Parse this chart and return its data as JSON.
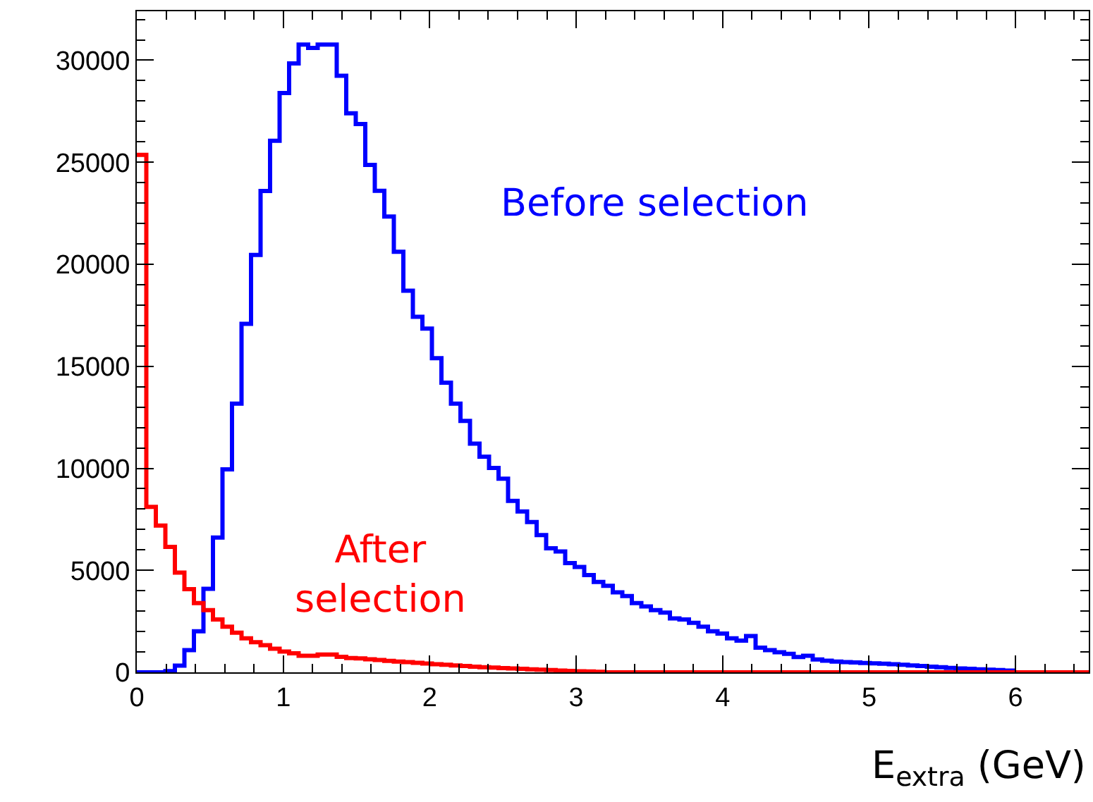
{
  "chart_data": {
    "type": "histogram",
    "xlabel": "E$_{extra}$ (GeV)",
    "bins": [
      0,
      0.065,
      0.13,
      0.195,
      0.26,
      0.325,
      0.39,
      0.455,
      0.52,
      0.585,
      0.65,
      0.715,
      0.78,
      0.845,
      0.91,
      0.975,
      1.04,
      1.105,
      1.17,
      1.235,
      1.3,
      1.365,
      1.43,
      1.495,
      1.56,
      1.625,
      1.69,
      1.755,
      1.82,
      1.885,
      1.95,
      2.015,
      2.08,
      2.145,
      2.21,
      2.275,
      2.34,
      2.405,
      2.47,
      2.535,
      2.6,
      2.665,
      2.73,
      2.795,
      2.86,
      2.925,
      2.99,
      3.055,
      3.12,
      3.185,
      3.25,
      3.315,
      3.38,
      3.445,
      3.51,
      3.575,
      3.64,
      3.705,
      3.77,
      3.835,
      3.9,
      3.965,
      4.03,
      4.095,
      4.16,
      4.225,
      4.29,
      4.355,
      4.42,
      4.485,
      4.55,
      4.615,
      4.68,
      4.745,
      4.81,
      4.875,
      4.94,
      5.005,
      5.07,
      5.135,
      5.2,
      5.265,
      5.33,
      5.395,
      5.46,
      5.525,
      5.59,
      5.655,
      5.72,
      5.785,
      5.85,
      5.915,
      5.98,
      6.045,
      6.11,
      6.175,
      6.24,
      6.305,
      6.37,
      6.435,
      6.5
    ],
    "series": [
      {
        "name": "Before selection",
        "color": "#0000ff",
        "values": [
          0,
          0,
          0,
          60,
          330,
          1090,
          2010,
          4090,
          6610,
          9950,
          13170,
          17080,
          20460,
          23590,
          26050,
          28390,
          29840,
          30770,
          30600,
          30770,
          30770,
          29240,
          27400,
          26870,
          24870,
          23600,
          22340,
          20610,
          18700,
          17430,
          16850,
          15400,
          14200,
          13170,
          12320,
          11210,
          10570,
          10020,
          9490,
          8400,
          7880,
          7370,
          6730,
          6080,
          5920,
          5350,
          5160,
          4770,
          4430,
          4240,
          3920,
          3740,
          3390,
          3230,
          3050,
          2930,
          2640,
          2590,
          2430,
          2240,
          2010,
          1900,
          1670,
          1550,
          1780,
          1210,
          1090,
          980,
          910,
          750,
          810,
          630,
          570,
          530,
          500,
          480,
          460,
          440,
          420,
          400,
          370,
          340,
          310,
          280,
          250,
          220,
          190,
          170,
          150,
          130,
          110,
          90,
          0,
          0,
          0,
          0,
          0,
          0,
          0,
          0
        ]
      },
      {
        "name": "After selection",
        "color": "#ff0000",
        "values": [
          25360,
          8110,
          7190,
          6150,
          4890,
          4080,
          3390,
          3050,
          2590,
          2240,
          1940,
          1670,
          1480,
          1330,
          1160,
          1020,
          930,
          810,
          810,
          870,
          870,
          760,
          700,
          680,
          640,
          600,
          560,
          530,
          500,
          470,
          430,
          400,
          370,
          340,
          310,
          280,
          250,
          230,
          210,
          190,
          170,
          150,
          130,
          110,
          90,
          70,
          50,
          40,
          30,
          0,
          0,
          0,
          0,
          0,
          0,
          0,
          0,
          0,
          0,
          0,
          0,
          0,
          0,
          0,
          0,
          0,
          0,
          0,
          0,
          0,
          0,
          0,
          0,
          0,
          0,
          0,
          0,
          0,
          0,
          0,
          0,
          0,
          0,
          0,
          0,
          0,
          0,
          0,
          0,
          0,
          0,
          0,
          0,
          0,
          0,
          0,
          0,
          0,
          0,
          0
        ]
      }
    ],
    "xlim": [
      0,
      6.5
    ],
    "xticks": [
      0,
      1,
      2,
      3,
      4,
      5,
      6
    ],
    "ylim": [
      0,
      32400
    ],
    "yticks": [
      0,
      5000,
      10000,
      15000,
      20000,
      25000,
      30000
    ],
    "grid": false,
    "legend": false
  }
}
